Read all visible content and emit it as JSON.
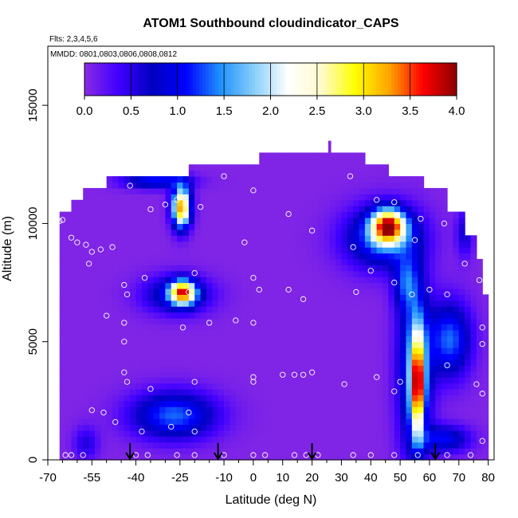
{
  "chart_data": {
    "type": "heatmap",
    "title": "ATOM1 Southbound cloudindicator_CAPS",
    "subtitle_flights": "Flts: 2,3,4,5,6",
    "subtitle_dates": "MMDD: 0801,0803,0806,0808,0812",
    "xlabel": "Latitude (deg N)",
    "ylabel": "Altitude (m)",
    "xlim": [
      -70,
      82
    ],
    "ylim": [
      0,
      17500
    ],
    "x_ticks": [
      -70,
      -55,
      -40,
      -25,
      -10,
      0,
      10,
      20,
      30,
      40,
      50,
      60,
      70,
      80
    ],
    "x_tick_labels": [
      "-70",
      "-55",
      "-40",
      "-25",
      "-10",
      "0",
      "10",
      "20",
      "30",
      "40",
      "50",
      "60",
      "70",
      "80"
    ],
    "x_minor_ticks": [
      -65,
      -60,
      -50,
      -45,
      -35,
      -30,
      -20,
      -15,
      -5,
      5,
      15,
      25,
      35,
      45,
      55,
      65,
      75
    ],
    "y_ticks": [
      0,
      5000,
      10000,
      15000
    ],
    "y_tick_labels": [
      "0",
      "5000",
      "10000",
      "15000"
    ],
    "colorbar": {
      "min": 0,
      "max": 4,
      "ticks": [
        0,
        0.5,
        1,
        1.5,
        2,
        2.5,
        3,
        3.5,
        4
      ],
      "tick_labels": [
        "0.0",
        "0.5",
        "1.0",
        "1.5",
        "2.0",
        "2.5",
        "3.0",
        "3.5",
        "4.0"
      ],
      "stops": [
        "#8a2be2",
        "#4000ff",
        "#0000c0",
        "#0000ff",
        "#1e90ff",
        "#87cefa",
        "#ffffff",
        "#fffacd",
        "#ffff00",
        "#ffa500",
        "#ff0000",
        "#8b0000"
      ]
    },
    "background_value": 0.05,
    "domain_envelope": [
      [
        -66,
        0,
        10500
      ],
      [
        -62,
        0,
        11000
      ],
      [
        -58,
        0,
        11500
      ],
      [
        -50,
        0,
        12000
      ],
      [
        -22,
        0,
        12500
      ],
      [
        -8,
        0,
        12500
      ],
      [
        2,
        0,
        13000
      ],
      [
        26,
        0,
        13000
      ],
      [
        38,
        0,
        12500
      ],
      [
        46,
        0,
        12000
      ],
      [
        58,
        0,
        11500
      ],
      [
        66,
        0,
        10500
      ],
      [
        72,
        0,
        9500
      ],
      [
        76,
        0,
        8500
      ],
      [
        78,
        0,
        7000
      ]
    ],
    "blobs": [
      {
        "lat": -24.5,
        "alt": 10700,
        "sx": 2.2,
        "sy": 600,
        "peak": 3.3
      },
      {
        "lat": -33,
        "alt": 11800,
        "sx": 8,
        "sy": 220,
        "peak": 1.1
      },
      {
        "lat": -24,
        "alt": 7100,
        "sx": 3,
        "sy": 350,
        "peak": 2.9
      },
      {
        "lat": -26,
        "alt": 7000,
        "sx": 8,
        "sy": 550,
        "peak": 1.0
      },
      {
        "lat": -27,
        "alt": 1900,
        "sx": 10,
        "sy": 700,
        "peak": 1.3
      },
      {
        "lat": -57,
        "alt": 700,
        "sx": 3,
        "sy": 500,
        "peak": 0.5
      },
      {
        "lat": 46,
        "alt": 9900,
        "sx": 4,
        "sy": 500,
        "peak": 3.2
      },
      {
        "lat": 44,
        "alt": 9400,
        "sx": 9,
        "sy": 900,
        "peak": 1.3
      },
      {
        "lat": 52,
        "alt": 7500,
        "sx": 3,
        "sy": 800,
        "peak": 0.9
      },
      {
        "lat": 56,
        "alt": 3200,
        "sx": 1.6,
        "sy": 1500,
        "peak": 2.9
      },
      {
        "lat": 55,
        "alt": 4000,
        "sx": 4,
        "sy": 2600,
        "peak": 1.4
      },
      {
        "lat": 67,
        "alt": 5100,
        "sx": 5,
        "sy": 1100,
        "peak": 1.3
      },
      {
        "lat": 65,
        "alt": 900,
        "sx": 6,
        "sy": 400,
        "peak": 1.0
      },
      {
        "lat": 72,
        "alt": 9600,
        "sx": 2,
        "sy": 700,
        "peak": 0.6
      }
    ],
    "sample_points": [
      [
        -66,
        10100
      ],
      [
        -65,
        10150
      ],
      [
        -62,
        9400
      ],
      [
        -60,
        9200
      ],
      [
        -57,
        9100
      ],
      [
        -55,
        8800
      ],
      [
        -52,
        8900
      ],
      [
        -56,
        8300
      ],
      [
        -48,
        9000
      ],
      [
        -44,
        7400
      ],
      [
        -43,
        7000
      ],
      [
        -44,
        5800
      ],
      [
        -44,
        5000
      ],
      [
        -44,
        3700
      ],
      [
        -43,
        3300
      ],
      [
        -50,
        6100
      ],
      [
        -37,
        7700
      ],
      [
        -35,
        3000
      ],
      [
        -55,
        2100
      ],
      [
        -51,
        2000
      ],
      [
        -47,
        1600
      ],
      [
        -38,
        1200
      ],
      [
        -28,
        1400
      ],
      [
        -20,
        1200
      ],
      [
        -42,
        11600
      ],
      [
        -35,
        10600
      ],
      [
        -30,
        10800
      ],
      [
        -26,
        11000
      ],
      [
        -18,
        10700
      ],
      [
        -10,
        12000
      ],
      [
        0,
        11400
      ],
      [
        0,
        7700
      ],
      [
        -3,
        9200
      ],
      [
        -20,
        7900
      ],
      [
        -22,
        7100
      ],
      [
        -24,
        5600
      ],
      [
        -15,
        5800
      ],
      [
        -6,
        5900
      ],
      [
        0,
        5800
      ],
      [
        2,
        7200
      ],
      [
        12,
        7200
      ],
      [
        17,
        6800
      ],
      [
        14,
        3600
      ],
      [
        17,
        3600
      ],
      [
        20,
        3700
      ],
      [
        10,
        3600
      ],
      [
        0,
        3500
      ],
      [
        0,
        3300
      ],
      [
        -20,
        3300
      ],
      [
        -22,
        2000
      ],
      [
        12,
        10400
      ],
      [
        20,
        9700
      ],
      [
        33,
        12000
      ],
      [
        42,
        11000
      ],
      [
        48,
        10900
      ],
      [
        34,
        9000
      ],
      [
        40,
        8000
      ],
      [
        48,
        7500
      ],
      [
        54,
        7000
      ],
      [
        60,
        7200
      ],
      [
        66,
        7000
      ],
      [
        35,
        7100
      ],
      [
        42,
        3500
      ],
      [
        50,
        3300
      ],
      [
        48,
        2900
      ],
      [
        31,
        3200
      ],
      [
        55,
        9300
      ],
      [
        57,
        10200
      ],
      [
        65,
        10000
      ],
      [
        72,
        8300
      ],
      [
        77,
        7600
      ],
      [
        78,
        5600
      ],
      [
        78,
        4900
      ],
      [
        66,
        4000
      ],
      [
        76,
        3200
      ],
      [
        78,
        2800
      ],
      [
        78,
        800
      ],
      [
        -62,
        200
      ],
      [
        -58,
        200
      ],
      [
        -40,
        200
      ],
      [
        -36,
        200
      ],
      [
        -26,
        200
      ],
      [
        -20,
        200
      ],
      [
        -10,
        200
      ],
      [
        0,
        200
      ],
      [
        4,
        200
      ],
      [
        14,
        200
      ],
      [
        18,
        200
      ],
      [
        22,
        200
      ],
      [
        34,
        200
      ],
      [
        40,
        200
      ],
      [
        48,
        200
      ],
      [
        56,
        200
      ],
      [
        66,
        200
      ],
      [
        74,
        200
      ],
      [
        -64,
        200
      ]
    ],
    "arrows_lat": [
      -42,
      -12,
      20,
      62
    ],
    "grid": false,
    "legend": "top colorbar"
  }
}
